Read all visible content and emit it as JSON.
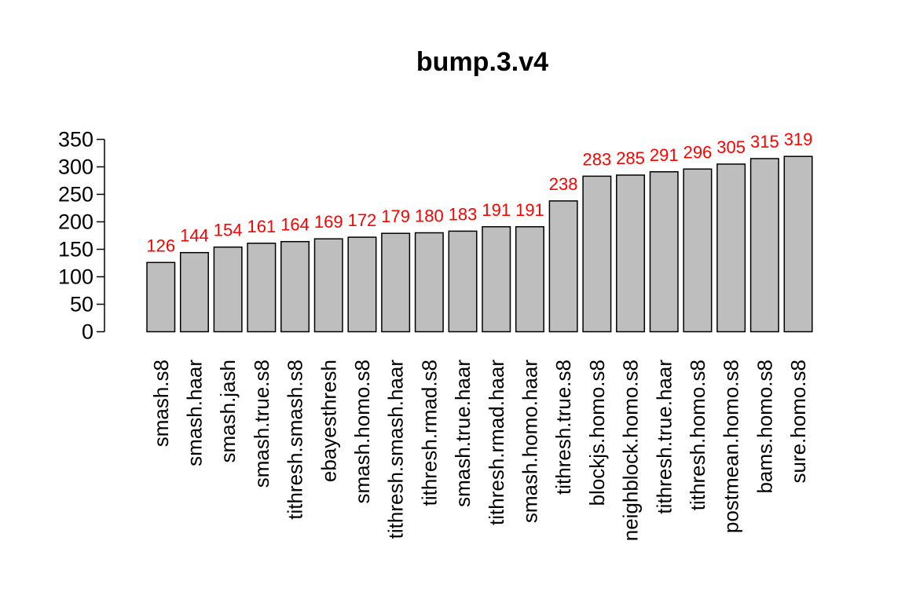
{
  "chart_data": {
    "type": "bar",
    "title": "bump.3.v4",
    "xlabel": "",
    "ylabel": "",
    "ylim": [
      0,
      350
    ],
    "yticks": [
      "0",
      "50",
      "100",
      "150",
      "200",
      "250",
      "300",
      "350"
    ],
    "categories": [
      "smash.s8",
      "smash.haar",
      "smash.jash",
      "smash.true.s8",
      "tithresh.smash.s8",
      "ebayesthresh",
      "smash.homo.s8",
      "tithresh.smash.haar",
      "tithresh.rmad.s8",
      "smash.true.haar",
      "tithresh.rmad.haar",
      "smash.homo.haar",
      "tithresh.true.s8",
      "blockjs.homo.s8",
      "neighblock.homo.s8",
      "tithresh.true.haar",
      "tithresh.homo.s8",
      "postmean.homo.s8",
      "bams.homo.s8",
      "sure.homo.s8"
    ],
    "values": [
      126,
      144,
      154,
      161,
      164,
      169,
      172,
      179,
      180,
      183,
      191,
      191,
      238,
      283,
      285,
      291,
      296,
      305,
      315,
      319
    ],
    "value_labels": [
      "126",
      "144",
      "154",
      "161",
      "164",
      "169",
      "172",
      "179",
      "180",
      "183",
      "191",
      "191",
      "238",
      "283",
      "285",
      "291",
      "296",
      "305",
      "315",
      "319"
    ],
    "grid": false,
    "colors": {
      "bar_fill": "#bebebe",
      "bar_stroke": "#000000",
      "value_label": "#ff0000",
      "axis": "#000000"
    }
  }
}
